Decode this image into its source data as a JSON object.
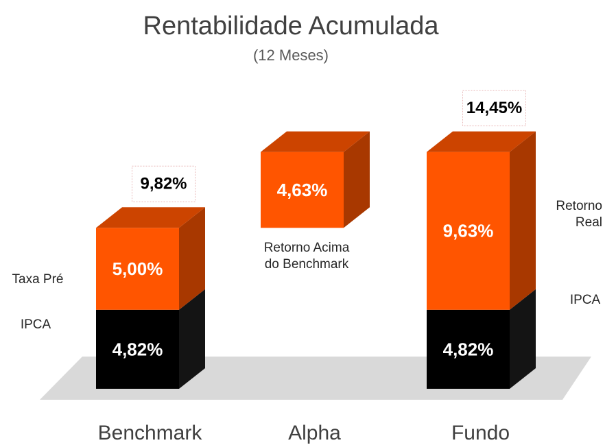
{
  "chart_data": {
    "type": "bar",
    "stacked": true,
    "title": "Rentabilidade Acumulada",
    "subtitle": "(12 Meses)",
    "categories": [
      "Benchmark",
      "Alpha",
      "Fundo"
    ],
    "floating": [
      false,
      true,
      false
    ],
    "series": [
      {
        "color": "#000000",
        "values": [
          4.82,
          null,
          4.82
        ],
        "value_labels": [
          "4,82%",
          null,
          "4,82%"
        ]
      },
      {
        "color": "#ff5500",
        "values": [
          5.0,
          4.63,
          9.63
        ],
        "value_labels": [
          "5,00%",
          "4,63%",
          "9,63%"
        ]
      }
    ],
    "totals": [
      9.82,
      null,
      14.45
    ],
    "total_labels": [
      "9,82%",
      null,
      "14,45%"
    ],
    "annotations": [
      {
        "category": 0,
        "series": 1,
        "lines": [
          "Taxa Pré"
        ]
      },
      {
        "category": 0,
        "series": 0,
        "lines": [
          "IPCA"
        ]
      },
      {
        "category": 1,
        "series": 1,
        "lines": [
          "Retorno Acima",
          "do Benchmark"
        ]
      },
      {
        "category": 2,
        "series": 1,
        "lines": [
          "Retorno",
          "Real"
        ]
      },
      {
        "category": 2,
        "series": 0,
        "lines": [
          "IPCA"
        ]
      }
    ]
  }
}
